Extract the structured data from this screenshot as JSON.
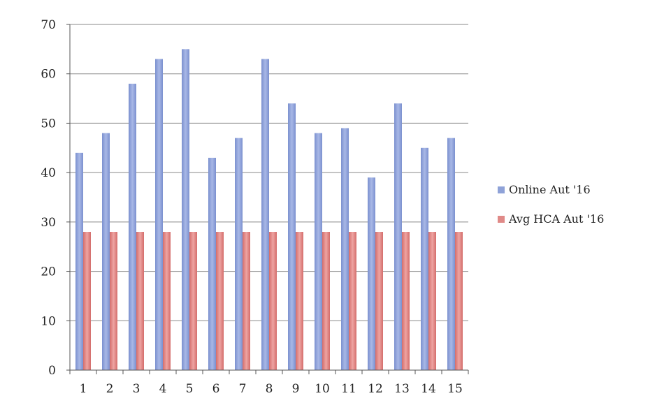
{
  "chart_data": {
    "type": "bar",
    "title": "",
    "xlabel": "",
    "ylabel": "",
    "categories": [
      "1",
      "2",
      "3",
      "4",
      "5",
      "6",
      "7",
      "8",
      "9",
      "10",
      "11",
      "12",
      "13",
      "14",
      "15"
    ],
    "series": [
      {
        "name": "Online Aut '16",
        "values": [
          44,
          48,
          58,
          63,
          65,
          43,
          47,
          63,
          54,
          48,
          49,
          39,
          54,
          45,
          47
        ],
        "color": "#8fa2d8"
      },
      {
        "name": "Avg HCA Aut '16",
        "values": [
          28,
          28,
          28,
          28,
          28,
          28,
          28,
          28,
          28,
          28,
          28,
          28,
          28,
          28,
          28
        ],
        "color": "#e08a88"
      }
    ],
    "ylim": [
      0,
      70
    ],
    "yticks": [
      0,
      10,
      20,
      30,
      40,
      50,
      60,
      70
    ],
    "grid": true,
    "legend_position": "right"
  }
}
